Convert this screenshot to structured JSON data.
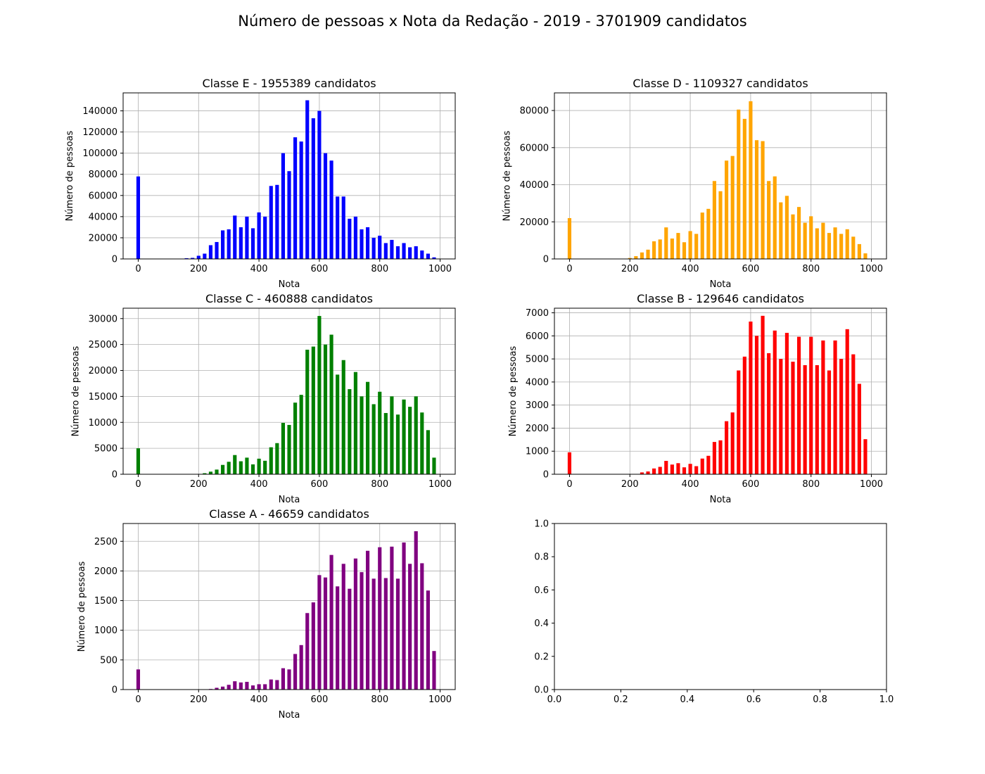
{
  "figure_title": "Número de pessoas x Nota da Redação - 2019 - 3701909 candidatos",
  "chart_data": [
    {
      "type": "bar",
      "title": "Classe E - 1955389 candidatos",
      "xlabel": "Nota",
      "ylabel": "Número de pessoas",
      "color": "#0000ff",
      "xlim": [
        -50,
        1050
      ],
      "ylim": [
        0,
        157000
      ],
      "xticks": [
        0,
        200,
        400,
        600,
        800,
        1000
      ],
      "yticks": [
        0,
        20000,
        40000,
        60000,
        80000,
        100000,
        120000,
        140000
      ],
      "grid": true,
      "x": [
        0,
        160,
        180,
        200,
        220,
        240,
        260,
        280,
        300,
        320,
        340,
        360,
        380,
        400,
        420,
        440,
        460,
        480,
        500,
        520,
        540,
        560,
        580,
        600,
        620,
        640,
        660,
        680,
        700,
        720,
        740,
        760,
        780,
        800,
        820,
        840,
        860,
        880,
        900,
        920,
        940,
        960,
        980,
        1000
      ],
      "values": [
        78000,
        700,
        1000,
        3000,
        5000,
        13000,
        16000,
        27000,
        28000,
        41000,
        30000,
        40000,
        29000,
        44000,
        40000,
        69000,
        70000,
        100000,
        83000,
        115000,
        111000,
        150000,
        133000,
        140000,
        100000,
        93000,
        59000,
        59000,
        38000,
        40000,
        28000,
        30000,
        20000,
        22000,
        15000,
        18000,
        12000,
        15000,
        11000,
        12000,
        8000,
        5000,
        1500,
        0
      ]
    },
    {
      "type": "bar",
      "title": "Classe D - 1109327 candidatos",
      "xlabel": "Nota",
      "ylabel": "Número de pessoas",
      "color": "#ffa500",
      "xlim": [
        -50,
        1050
      ],
      "ylim": [
        0,
        89500
      ],
      "xticks": [
        0,
        200,
        400,
        600,
        800,
        1000
      ],
      "yticks": [
        0,
        20000,
        40000,
        60000,
        80000
      ],
      "grid": true,
      "x": [
        0,
        200,
        220,
        240,
        260,
        280,
        300,
        320,
        340,
        360,
        380,
        400,
        420,
        440,
        460,
        480,
        500,
        520,
        540,
        560,
        580,
        600,
        620,
        640,
        660,
        680,
        700,
        720,
        740,
        760,
        780,
        800,
        820,
        840,
        860,
        880,
        900,
        920,
        940,
        960,
        980
      ],
      "values": [
        22000,
        500,
        1500,
        3500,
        5000,
        9500,
        10500,
        17000,
        11000,
        14000,
        9000,
        15000,
        13500,
        25000,
        27000,
        42000,
        36500,
        53000,
        55500,
        80500,
        75500,
        85000,
        64000,
        63500,
        42000,
        44500,
        30500,
        34000,
        24000,
        28000,
        19500,
        23000,
        16500,
        19500,
        14000,
        17000,
        13500,
        16000,
        12000,
        8000,
        3000
      ]
    },
    {
      "type": "bar",
      "title": "Classe C - 460888 candidatos",
      "xlabel": "Nota",
      "ylabel": "Número de pessoas",
      "color": "#008000",
      "xlim": [
        -50,
        1050
      ],
      "ylim": [
        0,
        32000
      ],
      "xticks": [
        0,
        200,
        400,
        600,
        800,
        1000
      ],
      "yticks": [
        0,
        5000,
        10000,
        15000,
        20000,
        25000,
        30000
      ],
      "grid": true,
      "x": [
        0,
        220,
        240,
        260,
        280,
        300,
        320,
        340,
        360,
        380,
        400,
        420,
        440,
        460,
        480,
        500,
        520,
        540,
        560,
        580,
        600,
        620,
        640,
        660,
        680,
        700,
        720,
        740,
        760,
        780,
        800,
        820,
        840,
        860,
        880,
        900,
        920,
        940,
        960,
        980
      ],
      "values": [
        5000,
        200,
        500,
        900,
        1800,
        2400,
        3700,
        2500,
        3200,
        1900,
        3000,
        2600,
        5200,
        6000,
        9900,
        9500,
        13800,
        15300,
        24000,
        24600,
        30500,
        25000,
        26900,
        19200,
        22000,
        16400,
        19700,
        15000,
        17800,
        13500,
        15900,
        11800,
        15000,
        11500,
        14400,
        13000,
        15000,
        11900,
        8500,
        3200
      ]
    },
    {
      "type": "bar",
      "title": "Classe B - 129646 candidatos",
      "xlabel": "Nota",
      "ylabel": "Número de pessoas",
      "color": "#ff0000",
      "xlim": [
        -50,
        1050
      ],
      "ylim": [
        0,
        7200
      ],
      "xticks": [
        0,
        200,
        400,
        600,
        800,
        1000
      ],
      "yticks": [
        0,
        1000,
        2000,
        3000,
        4000,
        5000,
        6000,
        7000
      ],
      "grid": true,
      "x": [
        0,
        240,
        260,
        280,
        300,
        320,
        340,
        360,
        380,
        400,
        420,
        440,
        460,
        480,
        500,
        520,
        540,
        560,
        580,
        600,
        620,
        640,
        660,
        680,
        700,
        720,
        740,
        760,
        780,
        800,
        820,
        840,
        860,
        880,
        900,
        920,
        940,
        960,
        980
      ],
      "values": [
        950,
        80,
        120,
        250,
        320,
        580,
        420,
        480,
        300,
        450,
        350,
        680,
        800,
        1400,
        1470,
        2300,
        2680,
        4500,
        5100,
        6620,
        6000,
        6870,
        5250,
        6230,
        5000,
        6130,
        4880,
        5960,
        4730,
        5960,
        4730,
        5800,
        4500,
        5800,
        5000,
        6290,
        5200,
        3920,
        1520
      ]
    },
    {
      "type": "bar",
      "title": "Classe A - 46659 candidatos",
      "xlabel": "Nota",
      "ylabel": "Número de pessoas",
      "color": "#800080",
      "xlim": [
        -50,
        1050
      ],
      "ylim": [
        0,
        2800
      ],
      "xticks": [
        0,
        200,
        400,
        600,
        800,
        1000
      ],
      "yticks": [
        0,
        500,
        1000,
        1500,
        2000,
        2500
      ],
      "grid": true,
      "x": [
        0,
        240,
        260,
        280,
        300,
        320,
        340,
        360,
        380,
        400,
        420,
        440,
        460,
        480,
        500,
        520,
        540,
        560,
        580,
        600,
        620,
        640,
        660,
        680,
        700,
        720,
        740,
        760,
        780,
        800,
        820,
        840,
        860,
        880,
        900,
        920,
        940,
        960,
        980
      ],
      "values": [
        340,
        10,
        30,
        50,
        80,
        140,
        120,
        130,
        70,
        90,
        90,
        170,
        160,
        360,
        340,
        600,
        750,
        1290,
        1470,
        1930,
        1890,
        2270,
        1740,
        2120,
        1700,
        2210,
        1980,
        2340,
        1870,
        2400,
        1880,
        2410,
        1870,
        2480,
        2120,
        2670,
        2130,
        1670,
        650
      ]
    },
    {
      "type": "bar",
      "title": "",
      "xlabel": "",
      "ylabel": "",
      "color": "#000000",
      "xlim": [
        0,
        1
      ],
      "ylim": [
        0,
        1
      ],
      "xticks": [
        0.0,
        0.2,
        0.4,
        0.6,
        0.8,
        1.0
      ],
      "yticks": [
        0.0,
        0.2,
        0.4,
        0.6,
        0.8,
        1.0
      ],
      "tick_format": "fixed1",
      "grid": false,
      "x": [],
      "values": []
    }
  ]
}
